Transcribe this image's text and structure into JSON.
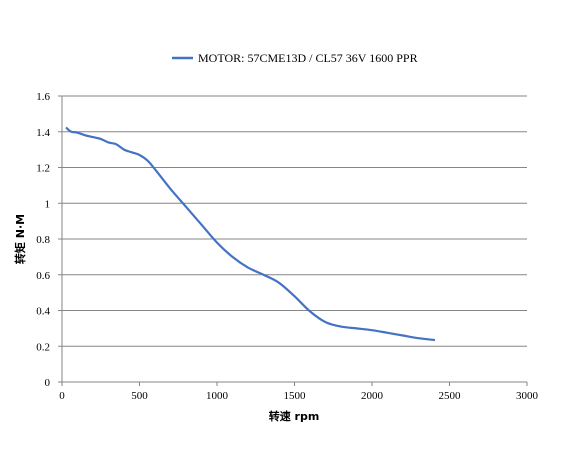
{
  "chart_data": {
    "type": "line",
    "xlabel": "转速 rpm",
    "ylabel": "转矩 N·M",
    "xlim": [
      0,
      3000
    ],
    "ylim": [
      0,
      1.6
    ],
    "x_ticks": [
      0,
      500,
      1000,
      1500,
      2000,
      2500,
      3000
    ],
    "y_ticks": [
      0,
      0.2,
      0.4,
      0.6,
      0.8,
      1,
      1.2,
      1.4,
      1.6
    ],
    "grid": "horizontal",
    "legend_position": "top",
    "series": [
      {
        "name": "MOTOR: 57CME13D / CL57 36V 1600 PPR",
        "color": "#4472c4",
        "x": [
          30,
          60,
          100,
          150,
          200,
          250,
          300,
          350,
          400,
          450,
          500,
          550,
          600,
          700,
          800,
          900,
          1000,
          1100,
          1200,
          1300,
          1400,
          1500,
          1600,
          1700,
          1800,
          1900,
          2000,
          2100,
          2200,
          2300,
          2400
        ],
        "y": [
          1.42,
          1.4,
          1.395,
          1.38,
          1.37,
          1.36,
          1.34,
          1.33,
          1.3,
          1.285,
          1.27,
          1.24,
          1.19,
          1.08,
          0.98,
          0.88,
          0.78,
          0.7,
          0.64,
          0.6,
          0.555,
          0.48,
          0.395,
          0.335,
          0.31,
          0.3,
          0.29,
          0.275,
          0.26,
          0.245,
          0.235
        ]
      }
    ]
  }
}
